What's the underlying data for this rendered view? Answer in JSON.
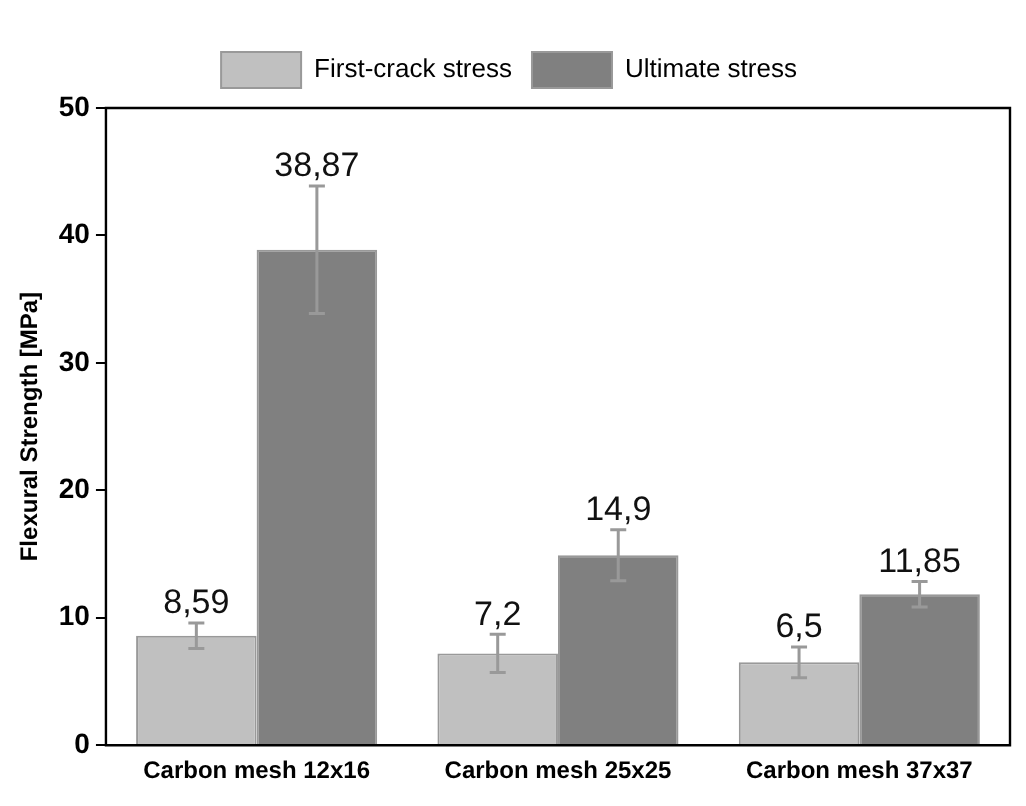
{
  "chart_data": {
    "type": "bar",
    "ylabel": "Flexural Strength [MPa]",
    "categories": [
      "Carbon mesh 12x16",
      "Carbon mesh 25x25",
      "Carbon mesh 37x37"
    ],
    "series": [
      {
        "name": "First-crack stress",
        "color": "#c0c0c0",
        "values": [
          8.59,
          7.2,
          6.5
        ],
        "errors": [
          1,
          1.5,
          1.2
        ],
        "value_labels": [
          "8,59",
          "7,2",
          "6,5"
        ]
      },
      {
        "name": "Ultimate stress",
        "color": "#808080",
        "values": [
          38.87,
          14.9,
          11.85
        ],
        "errors": [
          5,
          2,
          1
        ],
        "value_labels": [
          "38,87",
          "14,9",
          "11,85"
        ]
      }
    ],
    "ylim": [
      0,
      50
    ],
    "yticks": [
      0,
      10,
      20,
      30,
      40,
      50
    ],
    "grid": false,
    "legend": "top"
  }
}
